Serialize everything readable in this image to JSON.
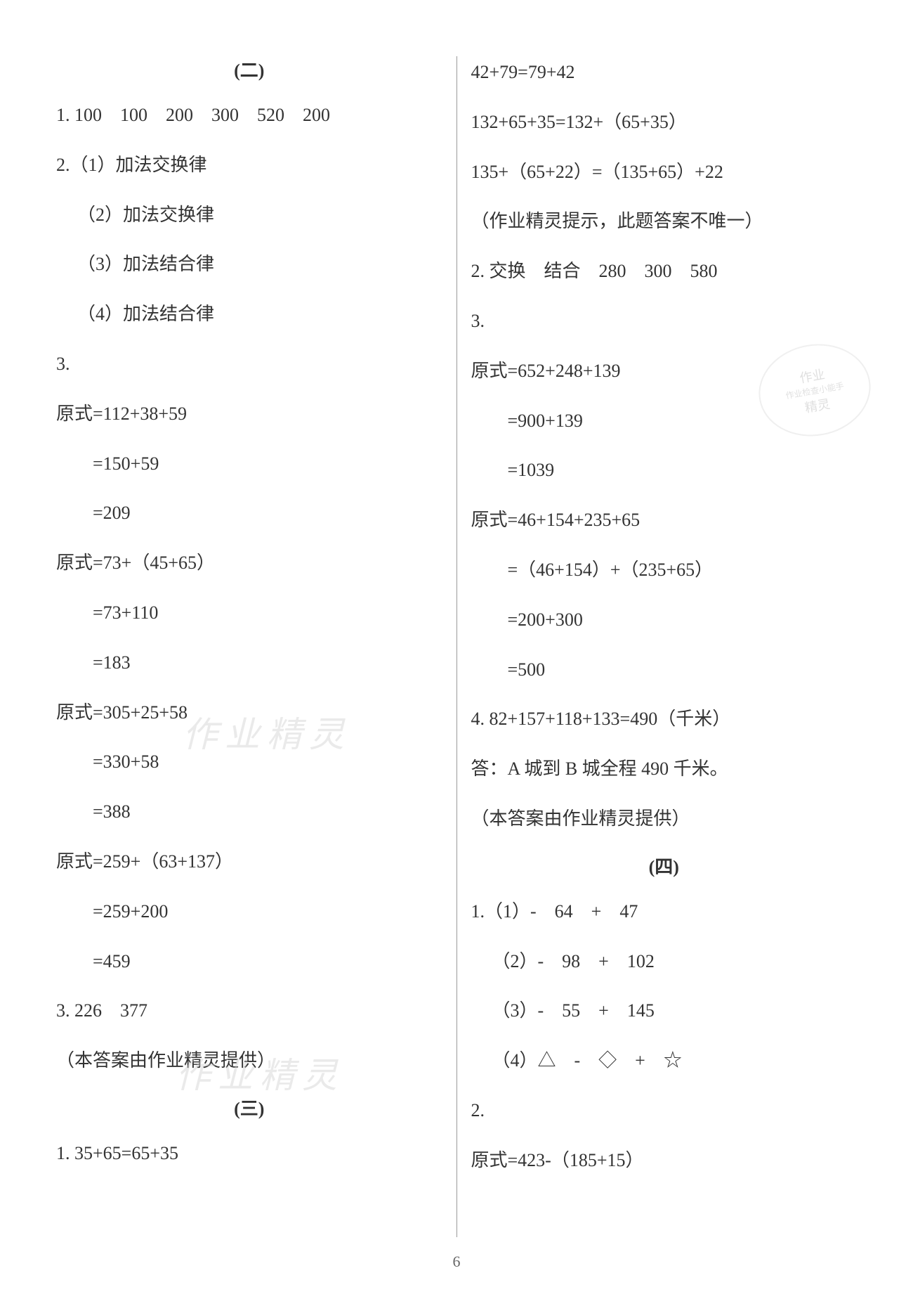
{
  "page_number": "6",
  "watermark_text": "作业精灵",
  "stamp_line1": "作业",
  "stamp_line2": "作业检查小能手",
  "stamp_line3": "精灵",
  "left": {
    "section2_title": "(二)",
    "q1": "1. 100　100　200　300　520　200",
    "q2": "2.（1）加法交换律",
    "q2_2": "（2）加法交换律",
    "q2_3": "（3）加法结合律",
    "q2_4": "（4）加法结合律",
    "q3": "3.",
    "eq1_1": "原式=112+38+59",
    "eq1_2": "=150+59",
    "eq1_3": "=209",
    "eq2_1": "原式=73+（45+65）",
    "eq2_2": "=73+110",
    "eq2_3": "=183",
    "eq3_1": "原式=305+25+58",
    "eq3_2": "=330+58",
    "eq3_3": "=388",
    "eq4_1": "原式=259+（63+137）",
    "eq4_2": "=259+200",
    "eq4_3": "=459",
    "q3b": "3. 226　377",
    "note1": "（本答案由作业精灵提供）",
    "section3_title": "(三)",
    "s3_q1": "1. 35+65=65+35"
  },
  "right": {
    "r1": "42+79=79+42",
    "r2": "132+65+35=132+（65+35）",
    "r3": "135+（65+22）=（135+65）+22",
    "r4": "（作业精灵提示，此题答案不唯一）",
    "r5": "2. 交换　结合　280　300　580",
    "r6": "3.",
    "eq5_1": "原式=652+248+139",
    "eq5_2": "=900+139",
    "eq5_3": "=1039",
    "eq6_1": "原式=46+154+235+65",
    "eq6_2": "=（46+154）+（235+65）",
    "eq6_3": "=200+300",
    "eq6_4": "=500",
    "r7": "4. 82+157+118+133=490（千米）",
    "r8": "答：A 城到 B 城全程 490 千米。",
    "r9": "（本答案由作业精灵提供）",
    "section4_title": "(四)",
    "s4_1": "1.（1）-　64　+　47",
    "s4_2": "（2）-　98　+　102",
    "s4_3": "（3）-　55　+　145",
    "s4_4": "（4）△　-　◇　+　☆",
    "s4_5": "2.",
    "s4_6": "原式=423-（185+15）"
  }
}
